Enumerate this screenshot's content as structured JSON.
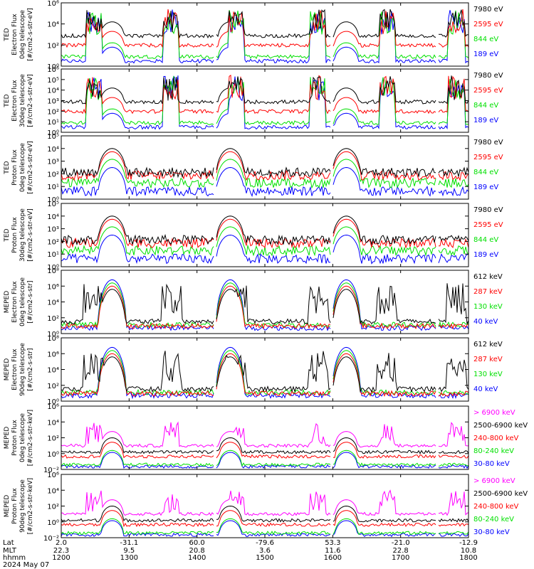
{
  "colors": {
    "black": "#000000",
    "red": "#ff0000",
    "green": "#00e000",
    "blue": "#0000ff",
    "magenta": "#ff00ff"
  },
  "chart_data": [
    {
      "type": "line",
      "ylabel": [
        "TED",
        "Electron Flux",
        "0deg telescope",
        "[#/cm2-s-str-eV]"
      ],
      "yscale": "log",
      "ylim": [
        1,
        1000000
      ],
      "yticks": [
        "10⁰",
        "10²",
        "10⁴",
        "10⁶"
      ],
      "legend": [
        {
          "label": "7980 eV",
          "color": "black"
        },
        {
          "label": "2595 eV",
          "color": "red"
        },
        {
          "label": "844 eV",
          "color": "green"
        },
        {
          "label": "189 eV",
          "color": "blue"
        }
      ]
    },
    {
      "type": "line",
      "ylabel": [
        "TED",
        "Electron Flux",
        "30deg telescope",
        "[#/cm2-s-str-eV]"
      ],
      "yscale": "log",
      "ylim": [
        1,
        1000000
      ],
      "yticks": [
        "10⁰",
        "10¹",
        "10²",
        "10³",
        "10⁴",
        "10⁵",
        "10⁶"
      ],
      "legend": [
        {
          "label": "7980 eV",
          "color": "black"
        },
        {
          "label": "2595 eV",
          "color": "red"
        },
        {
          "label": "844 eV",
          "color": "green"
        },
        {
          "label": "189 eV",
          "color": "blue"
        }
      ]
    },
    {
      "type": "line",
      "ylabel": [
        "TED",
        "Proton Flux",
        "0deg telescope",
        "[#/cm2-s-str-eV]"
      ],
      "yscale": "log",
      "ylim": [
        1,
        100000
      ],
      "yticks": [
        "10⁰",
        "10¹",
        "10²",
        "10³",
        "10⁴",
        "10⁵"
      ],
      "legend": [
        {
          "label": "7980 eV",
          "color": "black"
        },
        {
          "label": "2595 eV",
          "color": "red"
        },
        {
          "label": "844 eV",
          "color": "green"
        },
        {
          "label": "189 eV",
          "color": "blue"
        }
      ]
    },
    {
      "type": "line",
      "ylabel": [
        "TED",
        "Proton Flux",
        "30deg telescope",
        "[#/cm2-s-str-eV]"
      ],
      "yscale": "log",
      "ylim": [
        1,
        100000
      ],
      "yticks": [
        "10⁰",
        "10¹",
        "10²",
        "10³",
        "10⁴",
        "10⁵"
      ],
      "legend": [
        {
          "label": "7980 eV",
          "color": "black"
        },
        {
          "label": "2595 eV",
          "color": "red"
        },
        {
          "label": "844 eV",
          "color": "green"
        },
        {
          "label": "189 eV",
          "color": "blue"
        }
      ]
    },
    {
      "type": "line",
      "ylabel": [
        "MEPED",
        "Electron Flux",
        "0deg telescope",
        "[#/cm2-s-str]"
      ],
      "yscale": "log",
      "ylim": [
        1,
        100000000
      ],
      "yticks": [
        "10⁰",
        "10²",
        "10⁴",
        "10⁶",
        "10⁸"
      ],
      "legend": [
        {
          "label": "612 keV",
          "color": "black"
        },
        {
          "label": "287 keV",
          "color": "red"
        },
        {
          "label": "130 keV",
          "color": "green"
        },
        {
          "label": "40 keV",
          "color": "blue"
        }
      ]
    },
    {
      "type": "line",
      "ylabel": [
        "MEPED",
        "Electron Flux",
        "90deg telescope",
        "[#/cm2-s-str]"
      ],
      "yscale": "log",
      "ylim": [
        1,
        100000000
      ],
      "yticks": [
        "10⁰",
        "10²",
        "10⁴",
        "10⁶",
        "10⁸"
      ],
      "legend": [
        {
          "label": "612 keV",
          "color": "black"
        },
        {
          "label": "287 keV",
          "color": "red"
        },
        {
          "label": "130 keV",
          "color": "green"
        },
        {
          "label": "40 keV",
          "color": "blue"
        }
      ]
    },
    {
      "type": "line",
      "ylabel": [
        "MEPED",
        "Proton Flux",
        "0deg telescope",
        "[#/cm2-s-str-keV]"
      ],
      "yscale": "log",
      "ylim": [
        0.01,
        1000000
      ],
      "yticks": [
        "10⁻²",
        "10⁰",
        "10²",
        "10⁴",
        "10⁶"
      ],
      "legend": [
        {
          "label": "> 6900 keV",
          "color": "magenta"
        },
        {
          "label": "2500-6900 keV",
          "color": "black"
        },
        {
          "label": "240-800 keV",
          "color": "red"
        },
        {
          "label": "80-240 keV",
          "color": "green"
        },
        {
          "label": "30-80 keV",
          "color": "blue"
        }
      ]
    },
    {
      "type": "line",
      "ylabel": [
        "MEPED",
        "Proton Flux",
        "90deg telescope",
        "[#/cm2-s-str-keV]"
      ],
      "yscale": "log",
      "ylim": [
        0.01,
        1000000
      ],
      "yticks": [
        "10⁻²",
        "10⁰",
        "10²",
        "10⁴",
        "10⁶"
      ],
      "legend": [
        {
          "label": "> 6900 keV",
          "color": "magenta"
        },
        {
          "label": "2500-6900 keV",
          "color": "black"
        },
        {
          "label": "240-800 keV",
          "color": "red"
        },
        {
          "label": "80-240 keV",
          "color": "green"
        },
        {
          "label": "30-80 keV",
          "color": "blue"
        }
      ]
    }
  ],
  "xaxis": {
    "row_labels": [
      "Lat",
      "MLT",
      "hhmm",
      "2024 May 07"
    ],
    "ticks": [
      {
        "lat": "2.0",
        "mlt": "22.3",
        "hhmm": "1200"
      },
      {
        "lat": "-31.1",
        "mlt": "9.5",
        "hhmm": "1300"
      },
      {
        "lat": "60.0",
        "mlt": "20.8",
        "hhmm": "1400"
      },
      {
        "lat": "-79.6",
        "mlt": "3.6",
        "hhmm": "1500"
      },
      {
        "lat": "53.3",
        "mlt": "11.6",
        "hhmm": "1600"
      },
      {
        "lat": "-21.0",
        "mlt": "22.8",
        "hhmm": "1700"
      },
      {
        "lat": "-12.9",
        "mlt": "10.8",
        "hhmm": "1800"
      }
    ]
  }
}
